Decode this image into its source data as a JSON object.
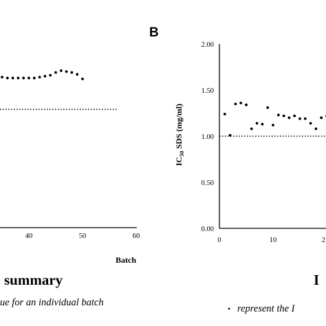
{
  "chart_data": [
    {
      "panel_label": "",
      "type": "scatter",
      "xlabel": "Batch",
      "ylabel": "",
      "xlim": [
        0,
        60
      ],
      "xticks": [
        "40",
        "50",
        "60"
      ],
      "reference_line": 1.0,
      "x": [
        35,
        36,
        37,
        38,
        39,
        40,
        41,
        42,
        43,
        44,
        45,
        46,
        47,
        48,
        49,
        50
      ],
      "y": [
        1.35,
        1.34,
        1.34,
        1.34,
        1.34,
        1.34,
        1.34,
        1.35,
        1.36,
        1.37,
        1.4,
        1.42,
        1.41,
        1.4,
        1.38,
        1.33
      ]
    },
    {
      "panel_label": "B",
      "type": "scatter",
      "xlabel": "",
      "ylabel": "IC50 SDS (mg/ml)",
      "ylim": [
        0,
        2
      ],
      "yticks": [
        "0.00",
        "0.50",
        "1.00",
        "1.50",
        "2.00"
      ],
      "xticks": [
        "0",
        "10",
        "2"
      ],
      "reference_line": 1.0,
      "x": [
        1,
        2,
        3,
        4,
        5,
        6,
        7,
        8,
        9,
        10,
        11,
        12,
        13,
        14,
        15,
        16,
        17,
        18,
        19,
        20
      ],
      "y": [
        1.24,
        1.01,
        1.35,
        1.36,
        1.34,
        1.08,
        1.14,
        1.13,
        1.31,
        1.12,
        1.23,
        1.22,
        1.2,
        1.22,
        1.19,
        1.19,
        1.14,
        1.08,
        1.2,
        1.22
      ]
    }
  ],
  "captions": {
    "left_title": "summary",
    "left_note": "ue for an individual batch",
    "right_title": "Iс",
    "right_note_bullet": "•",
    "right_note": "represent the I"
  }
}
